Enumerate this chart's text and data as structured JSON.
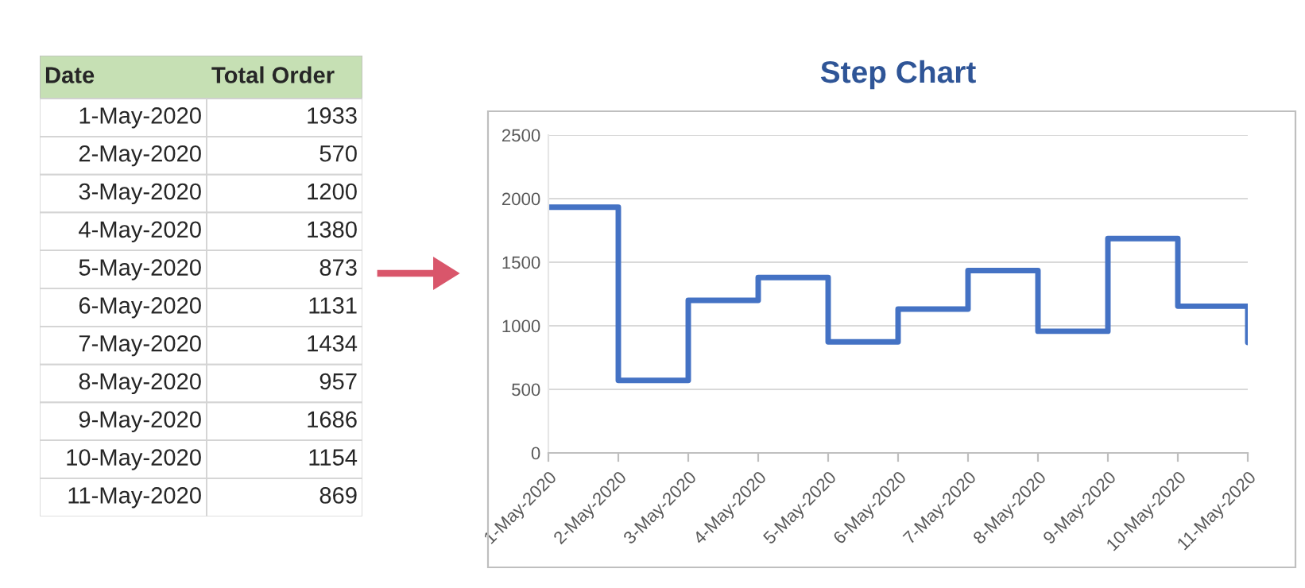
{
  "chart_data": [
    {
      "type": "other",
      "annotations": [
        "Date",
        "Total Order"
      ],
      "categories": [
        "1-May-2020",
        "2-May-2020",
        "3-May-2020",
        "4-May-2020",
        "5-May-2020",
        "6-May-2020",
        "7-May-2020",
        "8-May-2020",
        "9-May-2020",
        "10-May-2020",
        "11-May-2020"
      ],
      "values": [
        1933,
        570,
        1200,
        1380,
        873,
        1131,
        1434,
        957,
        1686,
        1154,
        869
      ],
      "data_labels": true
    },
    {
      "type": "step",
      "title": "Step Chart",
      "categories": [
        "1-May-2020",
        "2-May-2020",
        "3-May-2020",
        "4-May-2020",
        "5-May-2020",
        "6-May-2020",
        "7-May-2020",
        "8-May-2020",
        "9-May-2020",
        "10-May-2020",
        "11-May-2020"
      ],
      "series": [
        {
          "color": "#4472c4",
          "values": [
            1933,
            570,
            1200,
            1380,
            873,
            1131,
            1434,
            957,
            1686,
            1154,
            869
          ]
        }
      ],
      "ylim": [
        0,
        2500
      ],
      "yticks": [
        0,
        500,
        1000,
        1500,
        2000,
        2500
      ],
      "grid": "y"
    }
  ]
}
